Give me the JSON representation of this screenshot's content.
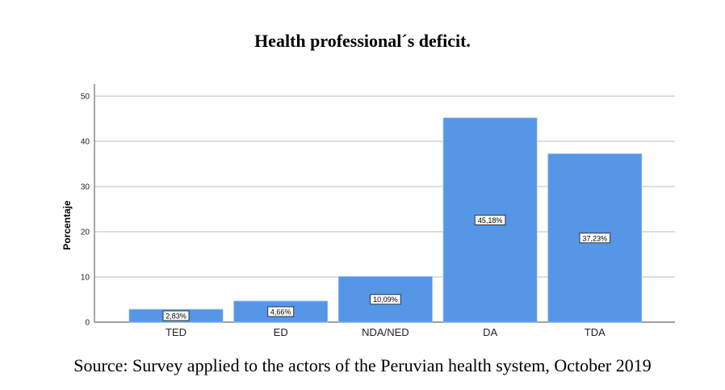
{
  "chart_data": {
    "type": "bar",
    "title": "Health professional´s deficit.",
    "xlabel": "",
    "ylabel": "Porcentaje",
    "categories": [
      "TED",
      "ED",
      "NDA/NED",
      "DA",
      "TDA"
    ],
    "values": [
      2.83,
      4.66,
      10.09,
      45.18,
      37.23
    ],
    "data_labels": [
      "2,83%",
      "4,66%",
      "10,09%",
      "45,18%",
      "37,23%"
    ],
    "ylim": [
      0,
      50
    ],
    "yticks": [
      "0",
      "10",
      "20",
      "30",
      "40",
      "50"
    ],
    "grid": true,
    "bar_color": "#5596e6",
    "source": "Source: Survey applied to the actors of the Peruvian health system, October 2019"
  }
}
